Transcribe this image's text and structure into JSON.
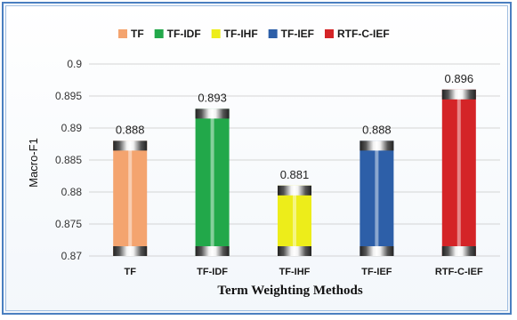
{
  "chart_data": {
    "type": "bar",
    "title": "",
    "xlabel": "Term Weighting Methods",
    "ylabel": "Macro-F1",
    "ylim": [
      0.87,
      0.9
    ],
    "yticks": [
      0.87,
      0.875,
      0.88,
      0.885,
      0.89,
      0.895,
      0.9
    ],
    "categories": [
      "TF",
      "TF-IDF",
      "TF-IHF",
      "TF-IEF",
      "RTF-C-IEF"
    ],
    "values": [
      0.888,
      0.893,
      0.881,
      0.888,
      0.896
    ],
    "data_labels": [
      "0.888",
      "0.893",
      "0.881",
      "0.888",
      "0.896"
    ],
    "legend": [
      "TF",
      "TF-IDF",
      "TF-IHF",
      "TF-IEF",
      "RTF-C-IEF"
    ],
    "legend_position": "top",
    "colors": [
      "#f4a46f",
      "#22a84a",
      "#eded1a",
      "#2d5fa8",
      "#d42427"
    ],
    "grid": true
  }
}
